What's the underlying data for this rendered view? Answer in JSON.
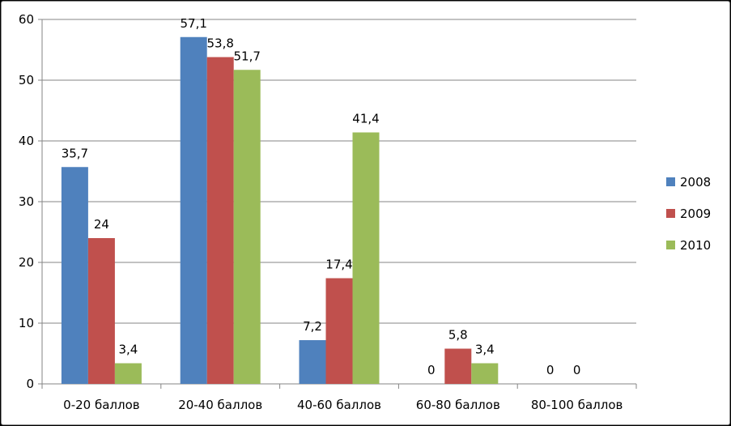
{
  "chart_data": {
    "type": "bar",
    "categories": [
      "0-20 баллов",
      "20-40 баллов",
      "40-60 баллов",
      "60-80 баллов",
      "80-100 баллов"
    ],
    "series": [
      {
        "name": "2008",
        "color": "#4f81bd",
        "values": [
          35.7,
          57.1,
          7.2,
          0,
          null
        ]
      },
      {
        "name": "2009",
        "color": "#c0504d",
        "values": [
          24,
          53.8,
          17.4,
          5.8,
          0
        ]
      },
      {
        "name": "2010",
        "color": "#9bbb59",
        "values": [
          3.4,
          51.7,
          41.4,
          3.4,
          0
        ]
      }
    ],
    "data_labels": [
      [
        "35,7",
        "57,1",
        "7,2",
        "0",
        "0"
      ],
      [
        "24",
        "53,8",
        "17,4",
        "5,8",
        "0"
      ],
      [
        "3,4",
        "51,7",
        "41,4",
        "3,4",
        ""
      ]
    ],
    "ylim": [
      0,
      60
    ],
    "yticks": [
      0,
      10,
      20,
      30,
      40,
      50,
      60
    ],
    "grid": true,
    "legend_position": "right"
  }
}
